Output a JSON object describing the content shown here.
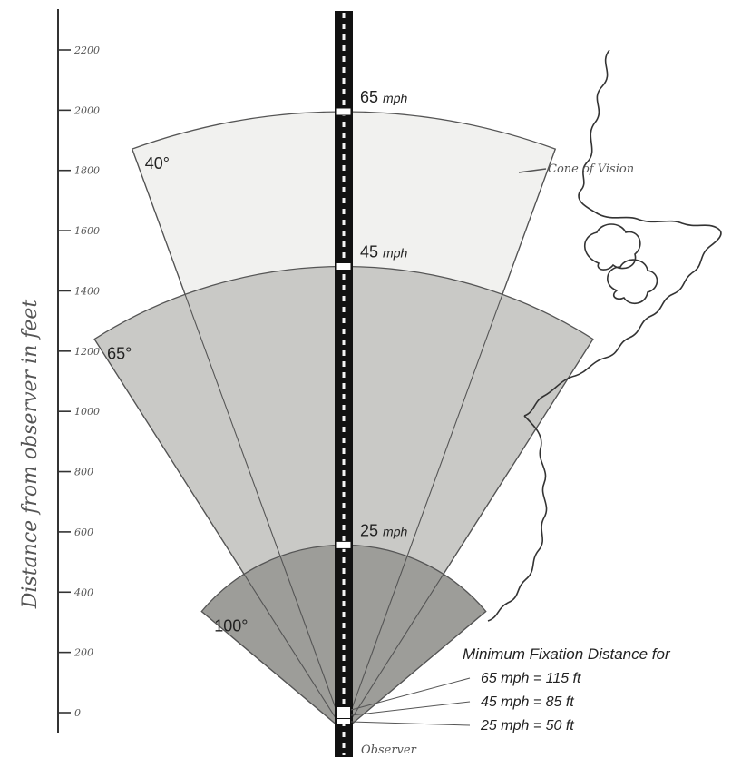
{
  "axis": {
    "label": "Distance from observer in feet",
    "ticks": [
      "2200",
      "2000",
      "1800",
      "1600",
      "1400",
      "1200",
      "1000",
      "800",
      "600",
      "400",
      "200",
      "0"
    ]
  },
  "cones": [
    {
      "angle_label": "40°",
      "speed_label": "65",
      "unit": "mph",
      "angle_deg": 40,
      "distance_ft": 2000,
      "fill": "#f1f1ef"
    },
    {
      "angle_label": "65°",
      "speed_label": "45",
      "unit": "mph",
      "angle_deg": 65,
      "distance_ft": 1500,
      "fill": "#c9c9c6"
    },
    {
      "angle_label": "100°",
      "speed_label": "25",
      "unit": "mph",
      "angle_deg": 100,
      "distance_ft": 600,
      "fill": "#9d9d99"
    }
  ],
  "annotation": {
    "cone_of_vision": "Cone of Vision"
  },
  "legend": {
    "title": "Minimum Fixation Distance for",
    "rows": [
      {
        "text": "65 mph = 115 ft",
        "speed_mph": 65,
        "distance_ft": 115
      },
      {
        "text": "45 mph = 85 ft",
        "speed_mph": 45,
        "distance_ft": 85
      },
      {
        "text": "25 mph = 50 ft",
        "speed_mph": 25,
        "distance_ft": 50
      }
    ]
  },
  "observer_label": "Observer",
  "colors": {
    "road": "#111111",
    "ink": "#333333",
    "outline": "#555555"
  }
}
